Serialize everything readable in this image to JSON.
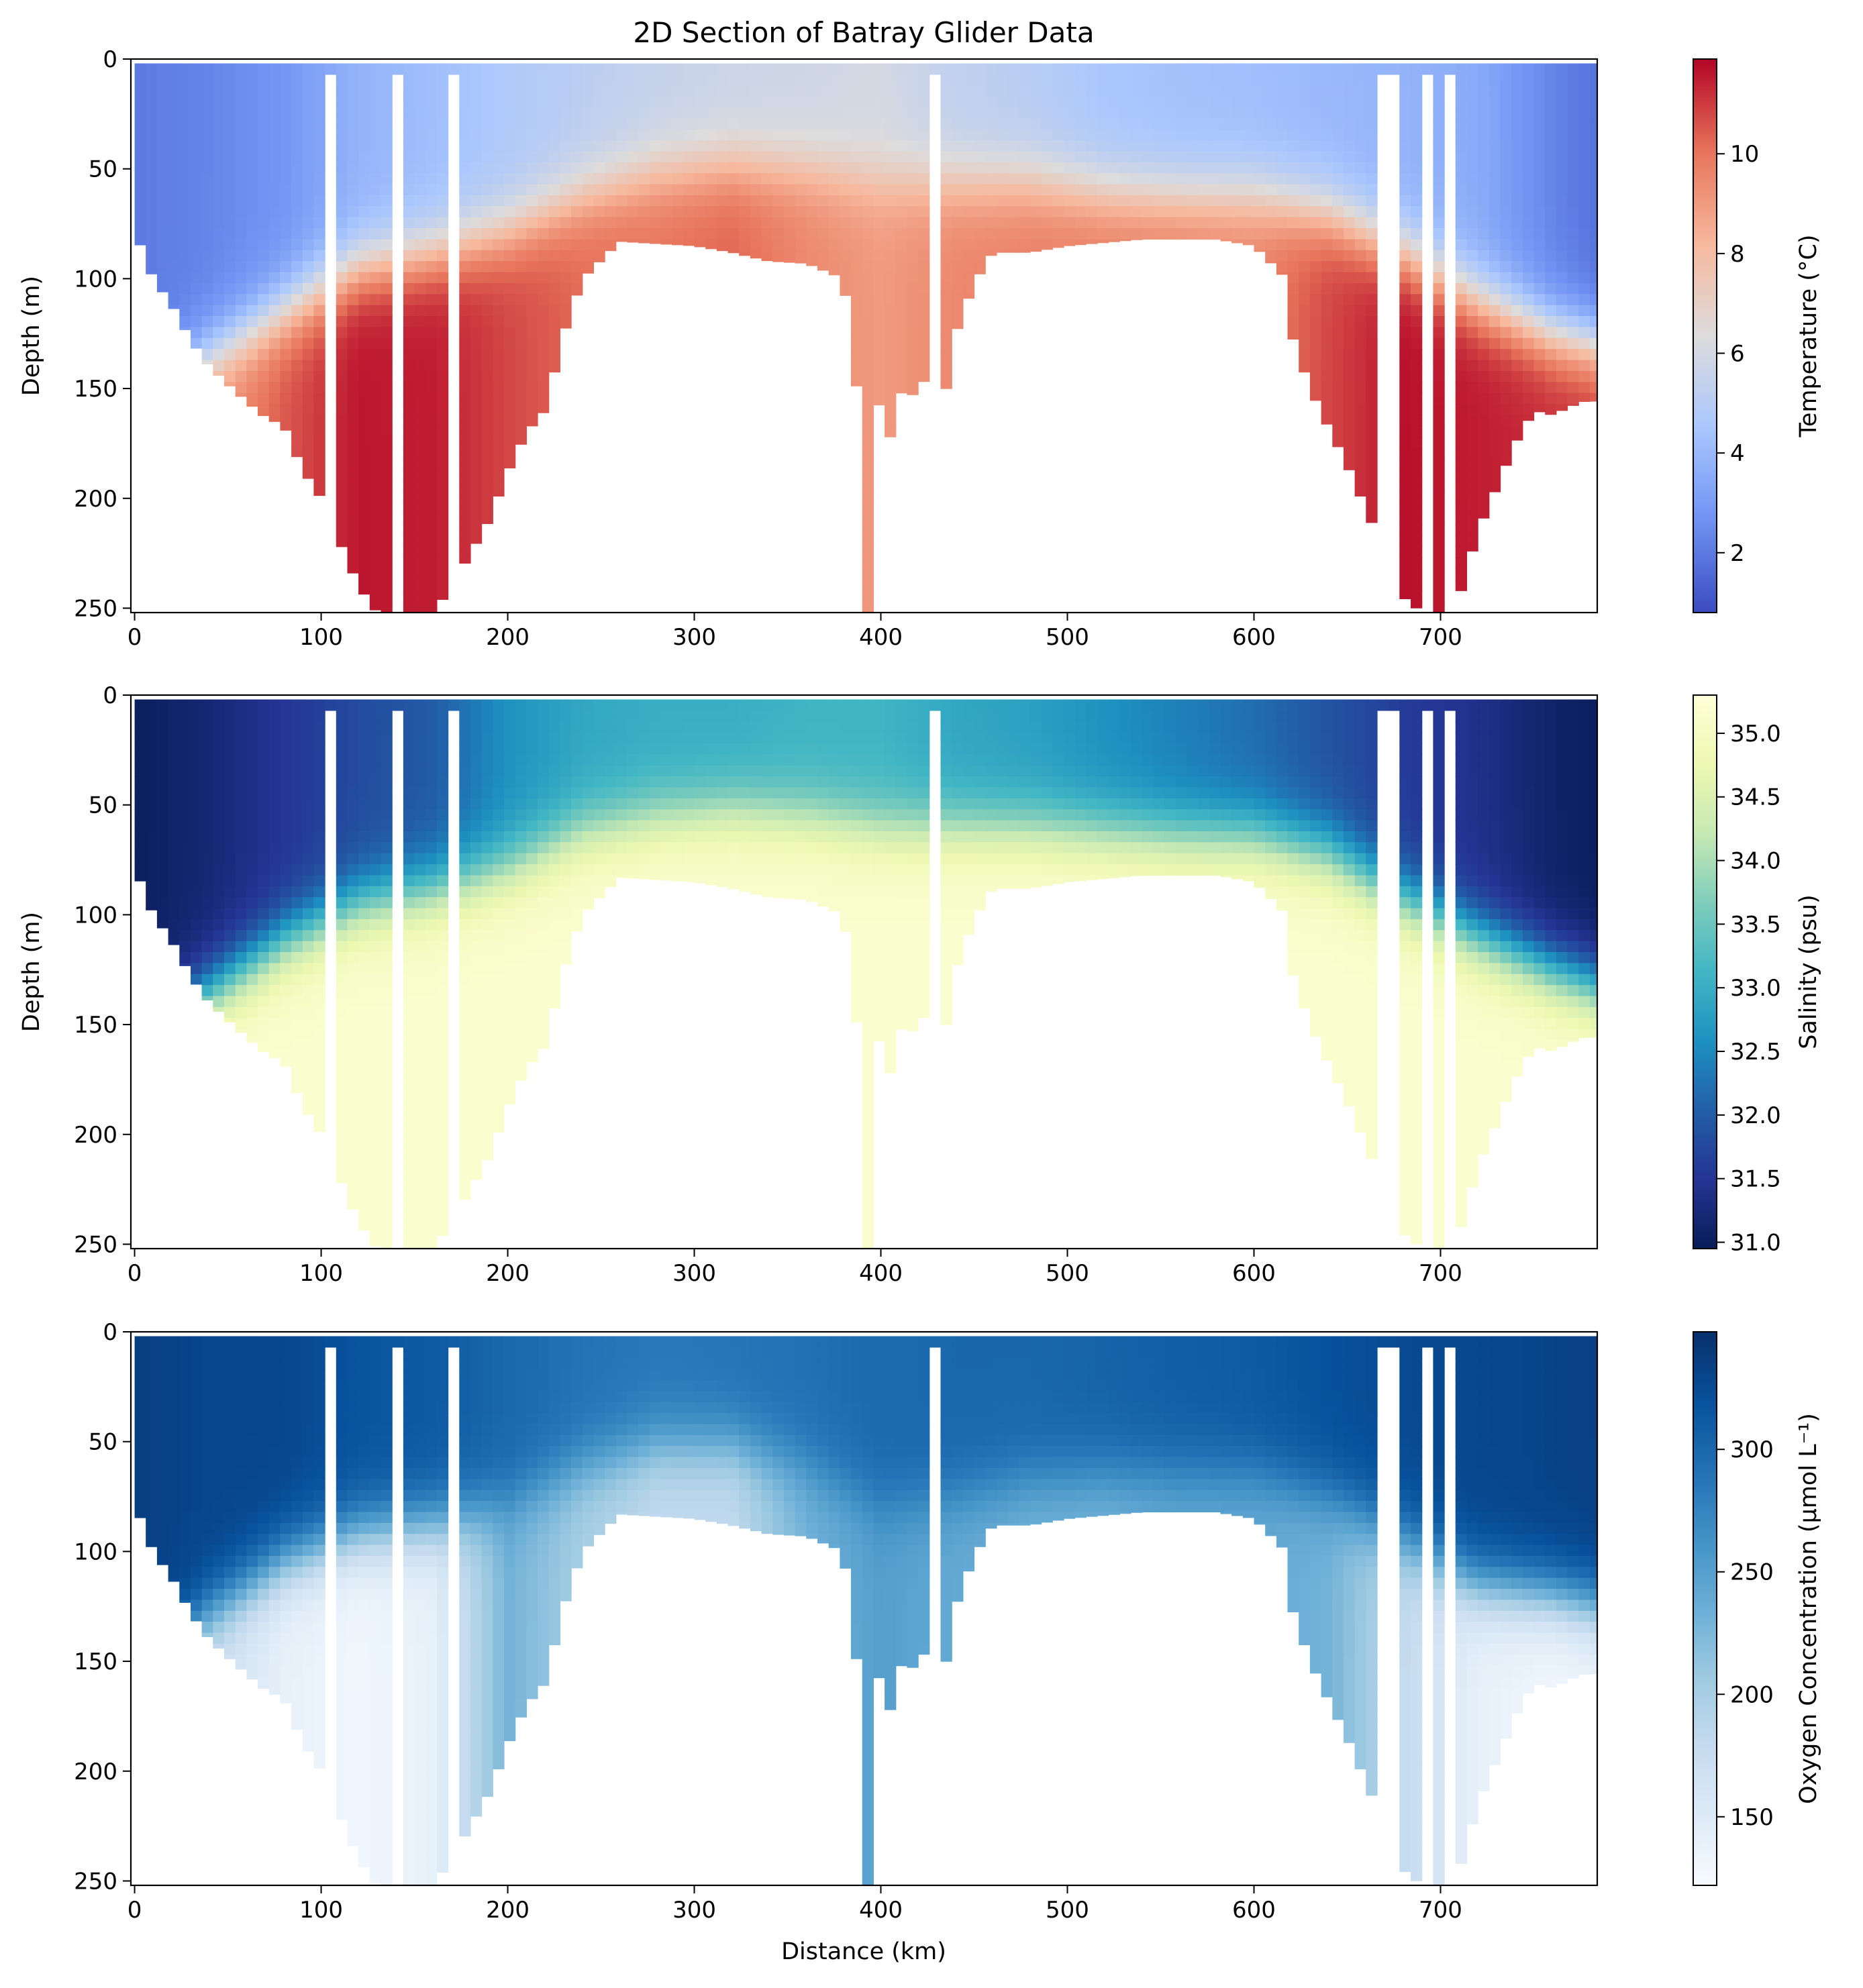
{
  "title": "2D Section of Batray Glider Data",
  "x_axis": {
    "label": "Distance (km)",
    "range": [
      -2,
      784
    ],
    "ticks": [
      0,
      100,
      200,
      300,
      400,
      500,
      600,
      700
    ],
    "tick_labels": [
      "0",
      "100",
      "200",
      "300",
      "400",
      "500",
      "600",
      "700"
    ]
  },
  "y_axis": {
    "label": "Depth (m)",
    "range": [
      0,
      252
    ],
    "inverted": true,
    "ticks": [
      0,
      50,
      100,
      150,
      200,
      250
    ],
    "tick_labels": [
      "0",
      "50",
      "100",
      "150",
      "200",
      "250"
    ]
  },
  "panels": [
    {
      "colorbar_label": "Temperature (°C)",
      "colormap": "coolwarm",
      "vmin": 0.8,
      "vmax": 11.9,
      "colorbar_ticks": [
        2,
        4,
        6,
        8,
        10
      ],
      "colorbar_tick_labels": [
        "2",
        "4",
        "6",
        "8",
        "10"
      ],
      "colors": [
        "#3b4cc0",
        "#6f92f3",
        "#aac7fd",
        "#dddcdc",
        "#f7b89c",
        "#e7745b",
        "#b40426"
      ]
    },
    {
      "colorbar_label": "Salinity (psu)",
      "colormap": "YlGnBu_r",
      "vmin": 30.95,
      "vmax": 35.3,
      "colorbar_ticks": [
        31.0,
        31.5,
        32.0,
        32.5,
        33.0,
        33.5,
        34.0,
        34.5,
        35.0
      ],
      "colorbar_tick_labels": [
        "31.0",
        "31.5",
        "32.0",
        "32.5",
        "33.0",
        "33.5",
        "34.0",
        "34.5",
        "35.0"
      ],
      "colors": [
        "#081d58",
        "#253494",
        "#225ea8",
        "#1d91c0",
        "#41b6c4",
        "#7fcdbb",
        "#c7e9b4",
        "#edf8b1",
        "#ffffd9"
      ]
    },
    {
      "colorbar_label": "Oxygen Concentration (μmol L⁻¹)",
      "colormap": "Blues",
      "vmin": 122,
      "vmax": 348,
      "colorbar_ticks": [
        150,
        200,
        250,
        300
      ],
      "colorbar_tick_labels": [
        "150",
        "200",
        "250",
        "300"
      ],
      "colors": [
        "#f7fbff",
        "#deebf7",
        "#c6dbef",
        "#9ecae1",
        "#6baed6",
        "#4292c6",
        "#2171b5",
        "#08519c",
        "#08306b"
      ]
    }
  ],
  "chart_data": {
    "type": "heatmap",
    "title": "2D Section of Batray Glider Data",
    "xlabel": "Distance (km)",
    "ylabel": "Depth (m)",
    "xlim": [
      -2,
      784
    ],
    "ylim": [
      252,
      0
    ],
    "bottom_depth_profile": {
      "x": [
        0,
        10,
        20,
        30,
        40,
        50,
        60,
        70,
        80,
        90,
        100,
        110,
        120,
        130,
        140,
        150,
        160,
        170,
        180,
        190,
        200,
        210,
        220,
        230,
        240,
        260,
        300,
        320,
        340,
        360,
        380,
        385,
        390,
        393,
        396,
        400,
        405,
        410,
        415,
        420,
        425,
        430,
        435,
        440,
        450,
        460,
        480,
        500,
        540,
        580,
        600,
        615,
        620,
        630,
        640,
        650,
        660,
        670,
        680,
        690,
        700,
        710,
        720,
        730,
        740,
        750,
        760,
        770,
        780,
        784
      ],
      "depth": [
        78,
        100,
        112,
        128,
        140,
        148,
        156,
        163,
        167,
        187,
        200,
        220,
        240,
        252,
        252,
        252,
        252,
        240,
        225,
        210,
        188,
        170,
        160,
        125,
        100,
        83,
        85,
        88,
        92,
        93,
        100,
        138,
        165,
        252,
        165,
        155,
        172,
        150,
        160,
        142,
        150,
        198,
        150,
        125,
        102,
        88,
        88,
        85,
        82,
        82,
        85,
        98,
        125,
        150,
        168,
        185,
        205,
        225,
        245,
        252,
        252,
        245,
        215,
        195,
        175,
        160,
        162,
        158,
        155,
        156
      ]
    },
    "temperature": {
      "unit": "°C",
      "vmin": 0.8,
      "vmax": 11.9,
      "surface": {
        "x": [
          0,
          40,
          80,
          120,
          160,
          200,
          240,
          280,
          320,
          360,
          400,
          440,
          480,
          520,
          560,
          600,
          640,
          680,
          720,
          760,
          784
        ],
        "values": [
          2.0,
          2.3,
          2.8,
          3.8,
          4.2,
          4.7,
          5.1,
          5.5,
          5.7,
          5.8,
          6.0,
          5.3,
          5.0,
          4.5,
          4.3,
          4.2,
          4.0,
          3.8,
          3.5,
          2.3,
          1.8
        ]
      },
      "thermocline": {
        "x": [
          0,
          40,
          80,
          120,
          160,
          200,
          240,
          280,
          320,
          360,
          400,
          440,
          480,
          520,
          560,
          600,
          640,
          680,
          720,
          760,
          784
        ],
        "depth": [
          160,
          135,
          115,
          95,
          88,
          78,
          62,
          52,
          48,
          50,
          55,
          55,
          55,
          60,
          62,
          62,
          70,
          88,
          110,
          125,
          130
        ]
      },
      "deep": {
        "x": [
          0,
          40,
          80,
          120,
          160,
          200,
          240,
          280,
          320,
          360,
          400,
          440,
          480,
          520,
          560,
          600,
          640,
          680,
          720,
          760,
          784
        ],
        "values": [
          8.5,
          9.0,
          10.5,
          11.6,
          11.5,
          10.8,
          10.2,
          10.0,
          10.3,
          9.5,
          9.0,
          9.5,
          9.7,
          9.8,
          9.8,
          9.6,
          10.8,
          11.7,
          11.5,
          11.2,
          11.0
        ]
      }
    },
    "salinity": {
      "unit": "psu",
      "vmin": 30.95,
      "vmax": 35.3,
      "surface": {
        "x": [
          0,
          40,
          80,
          120,
          160,
          200,
          240,
          280,
          320,
          360,
          400,
          440,
          480,
          520,
          560,
          600,
          640,
          680,
          720,
          760,
          784
        ],
        "values": [
          31.0,
          31.2,
          31.5,
          31.8,
          32.0,
          32.6,
          32.9,
          33.0,
          33.0,
          33.1,
          33.1,
          32.9,
          32.8,
          32.6,
          32.4,
          32.2,
          31.9,
          31.6,
          31.4,
          31.1,
          31.0
        ]
      },
      "halocline": {
        "x": [
          0,
          40,
          80,
          120,
          160,
          200,
          240,
          280,
          320,
          360,
          400,
          440,
          480,
          520,
          560,
          600,
          640,
          680,
          720,
          760,
          784
        ],
        "depth": [
          160,
          135,
          112,
          95,
          88,
          78,
          62,
          55,
          52,
          55,
          60,
          60,
          60,
          62,
          64,
          64,
          72,
          92,
          110,
          125,
          132
        ]
      },
      "deep": {
        "x": [
          0,
          784
        ],
        "values": [
          35.15,
          35.15
        ]
      }
    },
    "oxygen": {
      "unit": "μmol L⁻¹",
      "vmin": 122,
      "vmax": 348,
      "surface": {
        "x": [
          0,
          40,
          80,
          120,
          160,
          200,
          240,
          280,
          320,
          360,
          400,
          440,
          480,
          520,
          560,
          600,
          640,
          680,
          720,
          760,
          784
        ],
        "values": [
          335,
          330,
          328,
          318,
          312,
          300,
          290,
          285,
          288,
          292,
          298,
          300,
          300,
          304,
          308,
          312,
          320,
          325,
          328,
          332,
          334
        ]
      },
      "oxycline": {
        "x": [
          0,
          40,
          80,
          120,
          160,
          200,
          240,
          280,
          320,
          360,
          400,
          440,
          480,
          520,
          560,
          600,
          640,
          680,
          720,
          760,
          784
        ],
        "depth": [
          160,
          128,
          105,
          92,
          88,
          78,
          62,
          52,
          52,
          62,
          80,
          75,
          68,
          65,
          65,
          65,
          75,
          95,
          115,
          120,
          125
        ]
      },
      "deep": {
        "x": [
          0,
          40,
          80,
          120,
          160,
          200,
          240,
          280,
          320,
          360,
          400,
          440,
          480,
          520,
          560,
          600,
          640,
          680,
          720,
          760,
          784
        ],
        "values": [
          210,
          170,
          140,
          130,
          140,
          230,
          200,
          180,
          180,
          230,
          250,
          240,
          230,
          230,
          240,
          240,
          230,
          180,
          140,
          130,
          135
        ]
      }
    },
    "data_gaps_x": [
      18,
      107,
      140,
      170,
      420,
      427,
      660,
      668,
      677,
      695,
      702,
      706
    ]
  }
}
